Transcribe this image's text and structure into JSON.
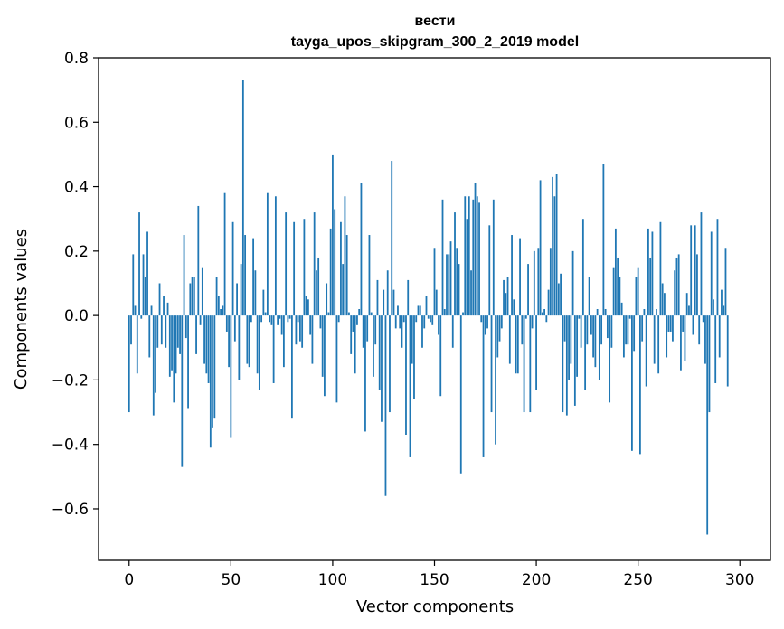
{
  "chart_data": {
    "type": "bar",
    "title": "вести",
    "subtitle": "tayga_upos_skipgram_300_2_2019 model",
    "xlabel": "Vector components",
    "ylabel": "Components values",
    "xlim": [
      -15,
      315
    ],
    "ylim": [
      -0.76,
      0.8
    ],
    "xticks": [
      0,
      50,
      100,
      150,
      200,
      250,
      300
    ],
    "xtick_labels": [
      "0",
      "50",
      "100",
      "150",
      "200",
      "250",
      "300"
    ],
    "yticks": [
      -0.6,
      -0.4,
      -0.2,
      0.0,
      0.2,
      0.4,
      0.6,
      0.8
    ],
    "ytick_labels": [
      "−0.6",
      "−0.4",
      "−0.2",
      "0.0",
      "0.2",
      "0.4",
      "0.6",
      "0.8"
    ],
    "grid": false,
    "bar_color": "#1f77b4",
    "x": "0..299",
    "values": [
      -0.3,
      -0.09,
      0.19,
      0.03,
      -0.18,
      0.32,
      -0.01,
      0.19,
      0.12,
      0.26,
      -0.13,
      0.03,
      -0.31,
      -0.24,
      -0.1,
      0.1,
      -0.09,
      0.06,
      -0.1,
      0.04,
      -0.19,
      -0.17,
      -0.27,
      -0.18,
      -0.1,
      -0.12,
      -0.47,
      0.25,
      -0.07,
      -0.29,
      0.1,
      0.12,
      0.12,
      -0.12,
      0.34,
      -0.03,
      0.15,
      -0.15,
      -0.18,
      -0.21,
      -0.41,
      -0.35,
      -0.32,
      0.12,
      0.06,
      0.02,
      0.03,
      0.38,
      -0.05,
      -0.16,
      -0.38,
      0.29,
      -0.08,
      0.1,
      -0.2,
      0.16,
      0.73,
      0.25,
      -0.15,
      -0.16,
      -0.02,
      0.24,
      0.14,
      -0.18,
      -0.23,
      -0.02,
      0.08,
      0.01,
      0.38,
      -0.02,
      -0.03,
      -0.21,
      0.37,
      -0.03,
      -0.01,
      -0.06,
      -0.16,
      0.32,
      -0.02,
      -0.01,
      -0.32,
      0.29,
      -0.09,
      -0.02,
      -0.08,
      -0.1,
      0.3,
      0.06,
      0.05,
      -0.06,
      -0.15,
      0.32,
      0.14,
      0.18,
      -0.04,
      -0.19,
      -0.25,
      0.1,
      0.01,
      0.27,
      0.5,
      0.33,
      -0.27,
      -0.02,
      0.29,
      0.16,
      0.37,
      0.25,
      0.01,
      -0.12,
      -0.05,
      -0.18,
      -0.03,
      0.02,
      0.41,
      -0.1,
      -0.36,
      -0.08,
      0.25,
      0.01,
      -0.19,
      -0.09,
      0.11,
      -0.23,
      -0.33,
      0.08,
      -0.56,
      0.14,
      -0.3,
      0.48,
      0.08,
      -0.04,
      0.03,
      -0.04,
      -0.1,
      -0.02,
      -0.37,
      0.11,
      -0.44,
      -0.15,
      -0.26,
      -0.02,
      0.03,
      0.03,
      -0.1,
      -0.04,
      0.06,
      -0.01,
      -0.02,
      -0.03,
      0.21,
      0.08,
      -0.06,
      -0.25,
      0.36,
      0.02,
      0.19,
      0.19,
      0.23,
      -0.1,
      0.32,
      0.21,
      0.16,
      -0.49,
      0.01,
      0.37,
      0.3,
      0.37,
      0.14,
      0.36,
      0.41,
      0.37,
      0.35,
      -0.02,
      -0.44,
      -0.06,
      -0.04,
      0.28,
      -0.3,
      0.36,
      -0.4,
      -0.13,
      -0.08,
      -0.04,
      0.11,
      0.07,
      0.12,
      -0.15,
      0.25,
      0.05,
      -0.18,
      -0.18,
      0.24,
      -0.09,
      -0.3,
      -0.01,
      0.16,
      -0.3,
      -0.04,
      0.2,
      -0.23,
      0.21,
      0.42,
      0.01,
      0.02,
      -0.02,
      0.08,
      0.21,
      0.43,
      0.37,
      0.44,
      0.1,
      0.13,
      -0.3,
      -0.08,
      -0.31,
      -0.2,
      -0.15,
      0.2,
      -0.28,
      -0.19,
      -0.01,
      -0.1,
      0.3,
      -0.23,
      -0.09,
      0.12,
      -0.06,
      -0.13,
      -0.16,
      0.02,
      -0.2,
      -0.09,
      0.47,
      0.02,
      -0.07,
      -0.27,
      -0.1,
      0.15,
      0.27,
      0.18,
      0.12,
      0.04,
      -0.13,
      -0.09,
      -0.09,
      -0.01,
      -0.42,
      -0.11,
      0.12,
      0.15,
      -0.43,
      -0.08,
      0.02,
      -0.22,
      0.27,
      0.18,
      0.26,
      -0.15,
      0.02,
      -0.18,
      0.29,
      0.1,
      0.07,
      -0.13,
      -0.05,
      -0.05,
      -0.08,
      0.14,
      0.18,
      0.19,
      -0.17,
      -0.05,
      -0.14,
      0.07,
      0.03,
      0.28,
      -0.06,
      0.28,
      0.19,
      -0.09,
      0.32,
      -0.02,
      -0.15,
      -0.68,
      -0.3,
      0.26,
      0.05,
      -0.21,
      0.3,
      -0.13,
      0.08,
      0.03,
      0.21,
      -0.22
    ]
  }
}
